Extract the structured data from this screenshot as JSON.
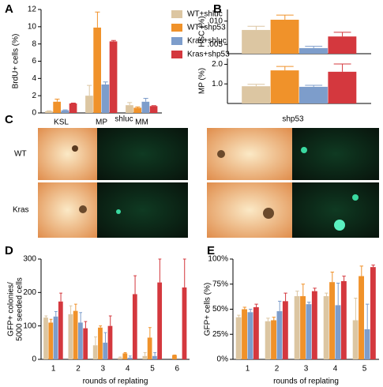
{
  "chart_data": [
    {
      "type": "bar",
      "panel_label": "A",
      "ylabel": "BrdU+ cells (%)",
      "categories": [
        "KSL",
        "MP",
        "MM"
      ],
      "ylim": [
        0,
        12
      ],
      "yticks": [
        0,
        2,
        4,
        6,
        8,
        10,
        12
      ],
      "series": [
        {
          "name": "WT+shluc",
          "color": "#dcc6a2",
          "values": [
            0.2,
            2.0,
            0.9
          ],
          "errors": [
            0.05,
            1.2,
            0.3
          ]
        },
        {
          "name": "WT+shp53",
          "color": "#f0922a",
          "values": [
            1.3,
            9.9,
            0.6
          ],
          "errors": [
            0.3,
            1.8,
            0.1
          ]
        },
        {
          "name": "Kras+shluc",
          "color": "#7d9dcb",
          "values": [
            0.3,
            3.3,
            1.3
          ],
          "errors": [
            0.05,
            0.3,
            0.4
          ]
        },
        {
          "name": "Kras+shp53",
          "color": "#d4383e",
          "values": [
            1.1,
            8.3,
            0.8
          ],
          "errors": [
            0.05,
            0.1,
            0.05
          ]
        }
      ]
    },
    {
      "type": "bar",
      "panel_label": "B",
      "ylabel": "HSC (%)",
      "categories": [
        null
      ],
      "ylim": [
        0.003,
        0.0125
      ],
      "yticks": [
        {
          "value": 0.005,
          "label": ".005"
        },
        {
          "value": 0.01,
          "label": ".010"
        }
      ],
      "series": [
        {
          "color": "#dcc6a2",
          "values": [
            0.0081
          ],
          "errors": [
            0.0008
          ]
        },
        {
          "color": "#f0922a",
          "values": [
            0.0103
          ],
          "errors": [
            0.001
          ]
        },
        {
          "color": "#7d9dcb",
          "values": [
            0.0042
          ],
          "errors": [
            0.0004
          ]
        },
        {
          "color": "#d4383e",
          "values": [
            0.0067
          ],
          "errors": [
            0.0009
          ]
        }
      ]
    },
    {
      "type": "bar",
      "ylabel": "MP (%)",
      "categories": [
        null
      ],
      "ylim": [
        0,
        2.3
      ],
      "yticks": [
        {
          "value": 1,
          "label": "1.0"
        },
        {
          "value": 2,
          "label": "2.0"
        }
      ],
      "series": [
        {
          "color": "#dcc6a2",
          "values": [
            0.88
          ],
          "errors": [
            0.1
          ]
        },
        {
          "color": "#f0922a",
          "values": [
            1.69
          ],
          "errors": [
            0.2
          ]
        },
        {
          "color": "#7d9dcb",
          "values": [
            0.85
          ],
          "errors": [
            0.08
          ]
        },
        {
          "color": "#d4383e",
          "values": [
            1.62
          ],
          "errors": [
            0.4
          ]
        }
      ]
    },
    {
      "type": "bar",
      "panel_label": "D",
      "ylabel": [
        "GFP+ colonies/",
        "5000 seeded cells"
      ],
      "xlabel": "rounds of replating",
      "categories": [
        "1",
        "2",
        "3",
        "4",
        "5",
        "6"
      ],
      "ylim": [
        0,
        300
      ],
      "yticks": [
        0,
        100,
        200,
        300
      ],
      "series": [
        {
          "color": "#dcc6a2",
          "values": [
            125,
            135,
            42,
            5,
            10,
            null
          ],
          "errors": [
            5,
            25,
            25,
            2,
            10,
            null
          ]
        },
        {
          "color": "#f0922a",
          "values": [
            110,
            145,
            95,
            18,
            65,
            13
          ],
          "errors": [
            10,
            20,
            5,
            2,
            30,
            0
          ]
        },
        {
          "color": "#7d9dcb",
          "values": [
            128,
            110,
            50,
            5,
            10,
            null
          ],
          "errors": [
            15,
            30,
            30,
            5,
            10,
            null
          ]
        },
        {
          "color": "#d4383e",
          "values": [
            173,
            93,
            100,
            195,
            230,
            215
          ],
          "errors": [
            25,
            20,
            30,
            55,
            70,
            85
          ]
        }
      ]
    },
    {
      "type": "bar",
      "panel_label": "E",
      "ylabel": "GFP+ cells (%)",
      "xlabel": "rounds of replating",
      "categories": [
        "1",
        "2",
        "3",
        "4",
        "5"
      ],
      "ylim": [
        0,
        100
      ],
      "yticks": [
        {
          "value": 0,
          "label": "0%"
        },
        {
          "value": 25,
          "label": "25%"
        },
        {
          "value": 50,
          "label": "50%"
        },
        {
          "value": 75,
          "label": "75%"
        },
        {
          "value": 100,
          "label": "100%"
        }
      ],
      "series": [
        {
          "color": "#dcc6a2",
          "values": [
            42,
            38,
            63,
            63,
            39
          ],
          "errors": [
            2,
            3,
            5,
            3,
            22
          ]
        },
        {
          "color": "#f0922a",
          "values": [
            50,
            39,
            63,
            77,
            83
          ],
          "errors": [
            2,
            3,
            12,
            10,
            10
          ]
        },
        {
          "color": "#7d9dcb",
          "values": [
            47,
            48,
            55,
            54,
            30
          ],
          "errors": [
            3,
            10,
            2,
            22,
            25
          ]
        },
        {
          "color": "#d4383e",
          "values": [
            52,
            58,
            68,
            78,
            92
          ],
          "errors": [
            3,
            8,
            3,
            5,
            2
          ]
        }
      ]
    }
  ],
  "panel_c": {
    "label": "C",
    "columns": [
      "shluc",
      "shp53"
    ],
    "rows": [
      "WT",
      "Kras"
    ]
  }
}
